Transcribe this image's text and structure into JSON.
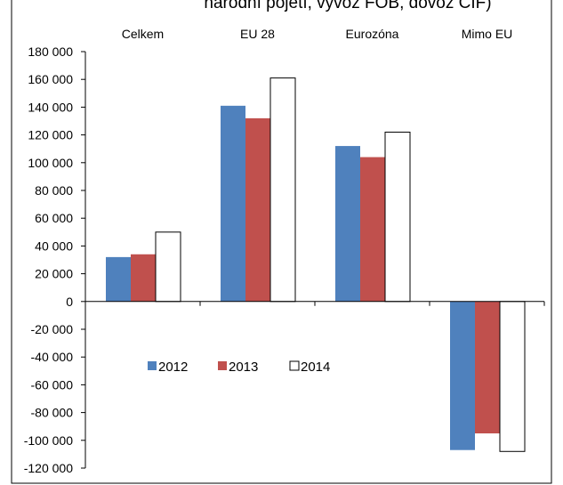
{
  "chart_data": {
    "type": "bar",
    "title": "národní pojetí, vývoz FOB, dovoz CIF)",
    "categories": [
      "Celkem",
      "EU 28",
      "Eurozóna",
      "Mimo EU"
    ],
    "series": [
      {
        "name": "2012",
        "values": [
          32000,
          141000,
          112000,
          -107000
        ],
        "color": "#4F81BD"
      },
      {
        "name": "2013",
        "values": [
          34000,
          132000,
          104000,
          -95000
        ],
        "color": "#C0504D"
      },
      {
        "name": "2014",
        "values": [
          50000,
          161000,
          122000,
          -108000
        ],
        "color": "#FFFFFF"
      }
    ],
    "ylim": [
      -120000,
      180000
    ],
    "yticks": [
      180000,
      160000,
      140000,
      120000,
      100000,
      80000,
      60000,
      40000,
      20000,
      0,
      -20000,
      -40000,
      -60000,
      -80000,
      -100000,
      -120000
    ],
    "ytick_labels": [
      "180 000",
      "160 000",
      "140 000",
      "120 000",
      "100 000",
      "80 000",
      "60 000",
      "40 000",
      "20 000",
      "0",
      "-20 000",
      "-40 000",
      "-60 000",
      "-80 000",
      "-100 000",
      "-120 000"
    ],
    "xlabel": "",
    "ylabel": "",
    "grid": false,
    "legend_position": "inside-lower-left",
    "category_labels_position": "top"
  }
}
